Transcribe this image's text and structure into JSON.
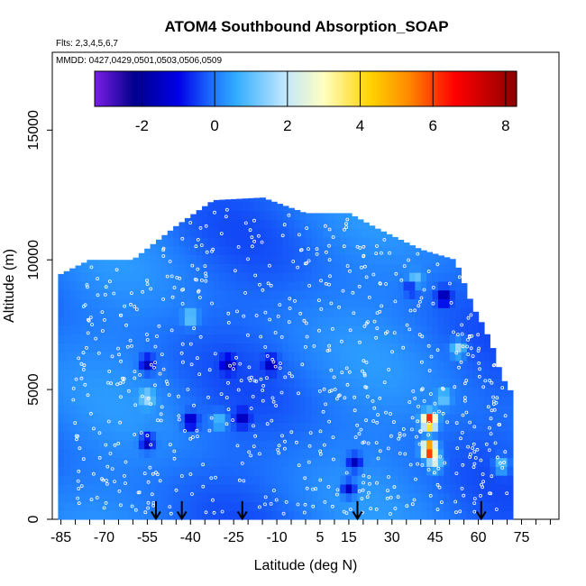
{
  "chart_data": {
    "type": "heatmap",
    "title": "ATOM4 Southbound Absorption_SOAP",
    "flights_note": "Flts: 2,3,4,5,6,7",
    "dates_note": "MMDD: 0427,0429,0501,0503,0506,0509",
    "xlabel": "Latitude (deg N)",
    "ylabel": "Altitude (m)",
    "xlim": [
      -88,
      88
    ],
    "ylim": [
      0,
      18000
    ],
    "x_ticks": [
      -85,
      -70,
      -55,
      -40,
      -25,
      -10,
      5,
      15,
      30,
      45,
      60,
      75
    ],
    "x_tick_labels": [
      "-85",
      "-70",
      "-55",
      "-40",
      "-25",
      "-10",
      "5",
      "15",
      "30",
      "45",
      "60",
      "75"
    ],
    "y_ticks": [
      0,
      5000,
      10000,
      15000
    ],
    "y_tick_labels": [
      "0",
      "5000",
      "10000",
      "15000"
    ],
    "colorbar": {
      "range": [
        -3.3,
        8.3
      ],
      "ticks": [
        -2,
        0,
        2,
        4,
        6,
        8
      ],
      "tick_labels": [
        "-2",
        "0",
        "2",
        "4",
        "6",
        "8"
      ],
      "colors": [
        "#7b1fe6",
        "#00008b",
        "#0000e8",
        "#1e78ff",
        "#33adff",
        "#bfe6ff",
        "#ffffc0",
        "#ffd200",
        "#ff8c00",
        "#ff0000",
        "#8b0000"
      ],
      "color_positions": [
        -3.3,
        -2.2,
        -1.0,
        0.0,
        0.6,
        1.9,
        3.0,
        4.3,
        5.3,
        6.6,
        8.3
      ]
    },
    "flight_boundary_latitudes": [
      -52,
      -43,
      -22,
      18,
      61
    ],
    "profile_envelope": [
      {
        "lat": -86,
        "top": 9400
      },
      {
        "lat": -75,
        "top": 10000
      },
      {
        "lat": -60,
        "top": 10000
      },
      {
        "lat": -45,
        "top": 11300
      },
      {
        "lat": -32,
        "top": 12300
      },
      {
        "lat": -15,
        "top": 12400
      },
      {
        "lat": 0,
        "top": 11800
      },
      {
        "lat": 15,
        "top": 11800
      },
      {
        "lat": 25,
        "top": 11200
      },
      {
        "lat": 40,
        "top": 10400
      },
      {
        "lat": 52,
        "top": 10000
      },
      {
        "lat": 58,
        "top": 8200
      },
      {
        "lat": 62,
        "top": 7400
      },
      {
        "lat": 65,
        "top": 6600
      },
      {
        "lat": 68,
        "top": 5500
      },
      {
        "lat": 72,
        "top": 4800
      }
    ],
    "hotspots": [
      {
        "lat": 43,
        "alt": 3800,
        "value": 7.0
      },
      {
        "lat": 43,
        "alt": 2700,
        "value": 7.5
      },
      {
        "lat": 45,
        "alt": 2200,
        "value": 2.2
      },
      {
        "lat": 53,
        "alt": 6600,
        "value": 1.8
      },
      {
        "lat": 38,
        "alt": 9200,
        "value": 1.8
      },
      {
        "lat": -40,
        "alt": 7800,
        "value": 1.5
      },
      {
        "lat": -55,
        "alt": 4700,
        "value": 1.5
      },
      {
        "lat": -30,
        "alt": 3800,
        "value": 1.2
      },
      {
        "lat": 68,
        "alt": 2100,
        "value": 1.5
      },
      {
        "lat": 48,
        "alt": 4700,
        "value": 1.2
      }
    ],
    "lowspots": [
      {
        "lat": -55,
        "alt": 6000,
        "value": -1.8
      },
      {
        "lat": -55,
        "alt": 3000,
        "value": -2.0
      },
      {
        "lat": -40,
        "alt": 3800,
        "value": -1.8
      },
      {
        "lat": -27,
        "alt": 6000,
        "value": -1.5
      },
      {
        "lat": -12,
        "alt": 6000,
        "value": -1.5
      },
      {
        "lat": 17,
        "alt": 2200,
        "value": -1.8
      },
      {
        "lat": 15,
        "alt": 1200,
        "value": -1.8
      },
      {
        "lat": 37,
        "alt": 9000,
        "value": -1.5
      },
      {
        "lat": 48,
        "alt": 8600,
        "value": -1.8
      },
      {
        "lat": -22,
        "alt": 3900,
        "value": -1.5
      }
    ]
  }
}
